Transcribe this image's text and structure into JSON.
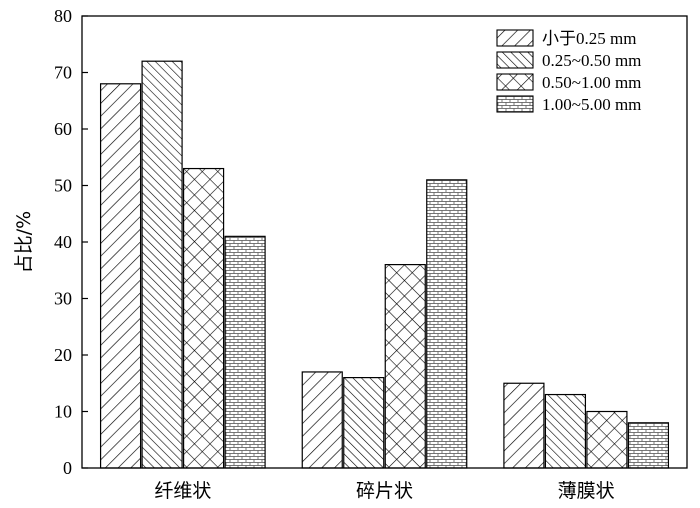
{
  "chart_data": {
    "type": "bar",
    "title": "",
    "xlabel": "",
    "ylabel": "占比/%",
    "ylim": [
      0,
      80
    ],
    "yticks": [
      "0",
      "10",
      "20",
      "30",
      "40",
      "50",
      "60",
      "70",
      "80"
    ],
    "categories": [
      "纤维状",
      "碎片状",
      "薄膜状"
    ],
    "grid": false,
    "legend_position": "top-right",
    "series": [
      {
        "name": "小于0.25 mm",
        "pattern": "diagonal-forward",
        "values": [
          68,
          17,
          15
        ]
      },
      {
        "name": "0.25~0.50 mm",
        "pattern": "diagonal-backward",
        "values": [
          72,
          16,
          13
        ]
      },
      {
        "name": "0.50~1.00 mm",
        "pattern": "crosshatch",
        "values": [
          53,
          36,
          10
        ]
      },
      {
        "name": "1.00~5.00 mm",
        "pattern": "brick",
        "values": [
          41,
          51,
          8
        ]
      }
    ]
  }
}
